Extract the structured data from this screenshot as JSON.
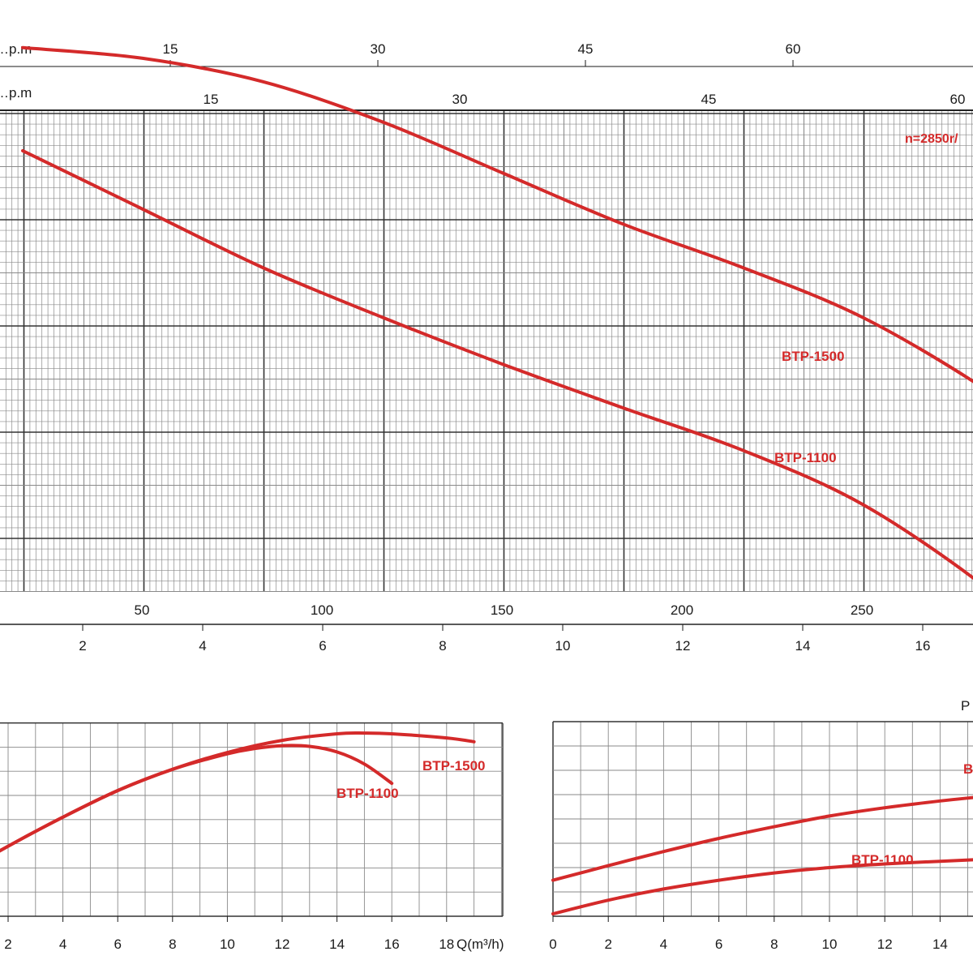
{
  "colors": {
    "curve": "#d42a2a",
    "major_grid": "#333333",
    "minor_grid": "#8a8a8a",
    "text": "#1a1a1a"
  },
  "chart_data": [
    {
      "id": "head_chart",
      "type": "line",
      "top_axis_1": {
        "unit": "…p.m",
        "ticks": [
          "15",
          "30",
          "45",
          "60"
        ]
      },
      "top_axis_2": {
        "unit": "…p.m",
        "ticks": [
          "15",
          "30",
          "45",
          "60"
        ]
      },
      "bottom_axis_1": {
        "ticks": [
          "50",
          "100",
          "150",
          "200",
          "250"
        ]
      },
      "bottom_axis_2": {
        "ticks": [
          "2",
          "4",
          "6",
          "8",
          "10",
          "12",
          "14",
          "16"
        ]
      },
      "speed_note": "n=2850r/",
      "series": [
        {
          "name": "BTP-1500",
          "x": [
            0,
            2,
            4,
            6,
            8,
            10,
            12,
            14,
            16,
            17
          ],
          "y": [
            4.62,
            4.52,
            4.3,
            3.92,
            3.44,
            2.96,
            2.55,
            2.08,
            1.42,
            0.97
          ]
        },
        {
          "name": "BTP-1100",
          "x": [
            0,
            2,
            4,
            6,
            8,
            10,
            12,
            14,
            16,
            17
          ],
          "y": [
            3.65,
            3.1,
            2.55,
            2.08,
            1.64,
            1.23,
            0.83,
            0.32,
            -0.44,
            -0.97
          ]
        }
      ]
    },
    {
      "id": "efficiency_chart",
      "type": "line",
      "x_ticks": [
        "2",
        "4",
        "6",
        "8",
        "10",
        "12",
        "14",
        "16",
        "18"
      ],
      "x_label": "Q(m³/h)",
      "series": [
        {
          "name": "BTP-1500",
          "x": [
            0,
            2,
            4,
            6,
            8,
            10,
            12,
            14,
            15,
            16,
            18,
            19
          ],
          "y": [
            1.6,
            2.9,
            4.1,
            5.2,
            6.08,
            6.78,
            7.28,
            7.55,
            7.58,
            7.55,
            7.38,
            7.22
          ]
        },
        {
          "name": "BTP-1100",
          "x": [
            0,
            2,
            4,
            6,
            8,
            10,
            11,
            12,
            13,
            14,
            15,
            16
          ],
          "y": [
            1.6,
            2.9,
            4.1,
            5.2,
            6.08,
            6.72,
            6.94,
            7.06,
            7.03,
            6.8,
            6.3,
            5.5
          ]
        }
      ]
    },
    {
      "id": "power_chart",
      "type": "line",
      "y_label": "P",
      "x_ticks": [
        "0",
        "2",
        "4",
        "6",
        "8",
        "10",
        "12",
        "14"
      ],
      "series": [
        {
          "name": "B",
          "x": [
            0,
            2,
            4,
            6,
            8,
            10,
            12,
            14,
            15.2
          ],
          "y": [
            1.38,
            1.98,
            2.56,
            3.1,
            3.58,
            4.02,
            4.36,
            4.64,
            4.78
          ]
        },
        {
          "name": "BTP-1100",
          "x": [
            0,
            2,
            4,
            6,
            8,
            10,
            12,
            14,
            15.2
          ],
          "y": [
            0,
            0.56,
            1.02,
            1.38,
            1.68,
            1.9,
            2.05,
            2.16,
            2.22
          ]
        }
      ]
    }
  ]
}
